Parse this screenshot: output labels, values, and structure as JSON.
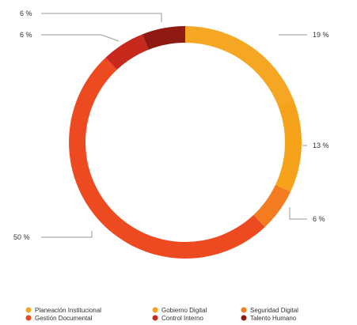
{
  "chart_data": {
    "type": "pie",
    "donut": true,
    "slices": [
      {
        "label": "Planeación Institucional",
        "value": 19,
        "display": "19 %",
        "color": "#F5A623"
      },
      {
        "label": "Gobierno Digital",
        "value": 13,
        "display": "13 %",
        "color": "#F7A21B"
      },
      {
        "label": "Seguridad Digital",
        "value": 6,
        "display": "6 %",
        "color": "#F47C20"
      },
      {
        "label": "Gestión Documental",
        "value": 50,
        "display": "50 %",
        "color": "#EE4A22"
      },
      {
        "label": "Control Interno",
        "value": 6,
        "display": "6 %",
        "color": "#C72A1C"
      },
      {
        "label": "Talento Humano",
        "value": 6,
        "display": "6 %",
        "color": "#8E1A12"
      }
    ],
    "legend_position": "bottom",
    "title": ""
  }
}
